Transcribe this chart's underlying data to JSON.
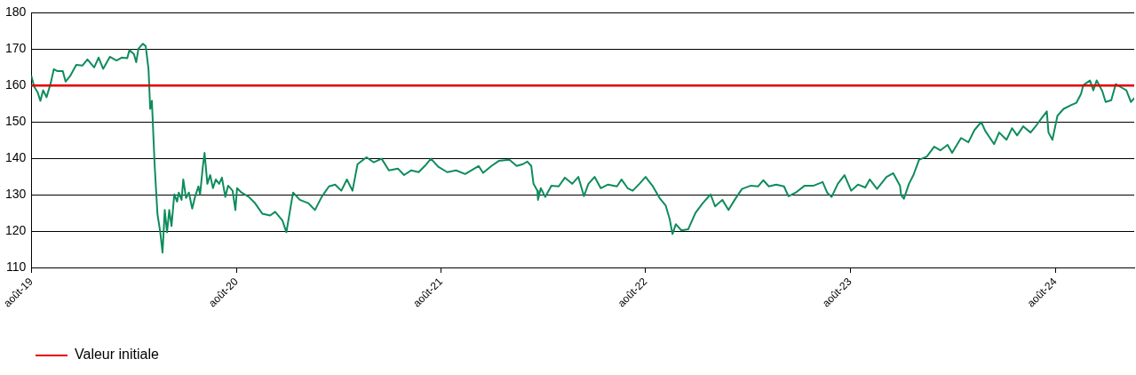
{
  "chart_data": {
    "type": "line",
    "x": [
      "2019-08-01",
      "2019-08-06",
      "2019-08-12",
      "2019-08-17",
      "2019-08-22",
      "2019-08-28",
      "2019-09-04",
      "2019-09-10",
      "2019-09-16",
      "2019-09-26",
      "2019-10-01",
      "2019-10-09",
      "2019-10-20",
      "2019-10-31",
      "2019-11-09",
      "2019-11-21",
      "2019-11-29",
      "2019-12-07",
      "2019-12-19",
      "2019-12-31",
      "2020-01-09",
      "2020-01-19",
      "2020-01-23",
      "2020-01-31",
      "2020-02-04",
      "2020-02-08",
      "2020-02-16",
      "2020-02-21",
      "2020-02-26",
      "2020-02-29",
      "2020-03-03",
      "2020-03-08",
      "2020-03-13",
      "2020-03-18",
      "2020-03-22",
      "2020-03-26",
      "2020-03-30",
      "2020-04-03",
      "2020-04-07",
      "2020-04-12",
      "2020-04-17",
      "2020-04-20",
      "2020-04-25",
      "2020-04-28",
      "2020-05-03",
      "2020-05-08",
      "2020-05-14",
      "2020-05-19",
      "2020-05-25",
      "2020-05-28",
      "2020-06-02",
      "2020-06-05",
      "2020-06-10",
      "2020-06-15",
      "2020-06-20",
      "2020-06-25",
      "2020-07-01",
      "2020-07-06",
      "2020-07-12",
      "2020-07-17",
      "2020-07-25",
      "2020-07-30",
      "2020-08-02",
      "2020-08-10",
      "2020-08-23",
      "2020-09-03",
      "2020-09-16",
      "2020-09-30",
      "2020-10-09",
      "2020-10-22",
      "2020-10-29",
      "2020-11-06",
      "2020-11-10",
      "2020-11-22",
      "2020-12-07",
      "2020-12-19",
      "2020-12-31",
      "2021-01-13",
      "2021-01-24",
      "2021-02-04",
      "2021-02-14",
      "2021-02-24",
      "2021-03-05",
      "2021-03-21",
      "2021-04-03",
      "2021-04-17",
      "2021-04-30",
      "2021-05-16",
      "2021-05-27",
      "2021-06-09",
      "2021-06-22",
      "2021-07-03",
      "2021-07-14",
      "2021-07-27",
      "2021-08-12",
      "2021-08-28",
      "2021-09-13",
      "2021-10-07",
      "2021-10-15",
      "2021-10-30",
      "2021-11-12",
      "2021-12-01",
      "2021-12-14",
      "2021-12-25",
      "2022-01-02",
      "2022-01-09",
      "2022-01-13",
      "2022-01-20",
      "2022-01-21",
      "2022-01-26",
      "2022-02-03",
      "2022-02-14",
      "2022-02-27",
      "2022-03-10",
      "2022-03-23",
      "2022-04-03",
      "2022-04-13",
      "2022-04-21",
      "2022-05-02",
      "2022-05-13",
      "2022-05-26",
      "2022-06-11",
      "2022-06-19",
      "2022-06-30",
      "2022-07-09",
      "2022-07-21",
      "2022-08-01",
      "2022-08-14",
      "2022-08-26",
      "2022-09-06",
      "2022-09-13",
      "2022-09-18",
      "2022-09-24",
      "2022-10-04",
      "2022-10-16",
      "2022-10-29",
      "2022-11-11",
      "2022-11-25",
      "2022-12-03",
      "2022-12-16",
      "2022-12-27",
      "2023-01-07",
      "2023-01-20",
      "2023-02-05",
      "2023-02-18",
      "2023-02-27",
      "2023-03-09",
      "2023-03-22",
      "2023-04-05",
      "2023-04-13",
      "2023-04-26",
      "2023-05-12",
      "2023-05-28",
      "2023-06-13",
      "2023-06-21",
      "2023-06-29",
      "2023-07-10",
      "2023-07-22",
      "2023-08-03",
      "2023-08-15",
      "2023-08-28",
      "2023-09-05",
      "2023-09-18",
      "2023-10-05",
      "2023-10-17",
      "2023-10-23",
      "2023-10-29",
      "2023-10-31",
      "2023-11-05",
      "2023-11-14",
      "2023-11-22",
      "2023-12-02",
      "2023-12-16",
      "2023-12-29",
      "2024-01-09",
      "2024-01-22",
      "2024-01-30",
      "2024-02-15",
      "2024-02-28",
      "2024-03-10",
      "2024-03-22",
      "2024-03-29",
      "2024-04-14",
      "2024-04-23",
      "2024-05-06",
      "2024-05-16",
      "2024-05-25",
      "2024-06-05",
      "2024-06-18",
      "2024-06-29",
      "2024-07-07",
      "2024-07-17",
      "2024-07-20",
      "2024-07-27",
      "2024-08-05",
      "2024-08-16",
      "2024-08-29",
      "2024-09-08",
      "2024-09-16",
      "2024-09-20",
      "2024-10-02",
      "2024-10-08",
      "2024-10-14",
      "2024-10-24",
      "2024-10-30",
      "2024-11-09",
      "2024-11-17",
      "2024-11-28",
      "2024-12-06",
      "2024-12-14",
      "2024-12-20"
    ],
    "series": [
      {
        "color": "#0e8c5c",
        "values": [
          162.6,
          159.7,
          158.2,
          155.8,
          158.7,
          156.8,
          160.4,
          164.5,
          164,
          164,
          161.1,
          162.6,
          165.7,
          165.5,
          167.2,
          165,
          167.7,
          164.6,
          167.9,
          166.9,
          167.7,
          167.5,
          169.8,
          168.6,
          166.4,
          170.1,
          171.5,
          170.8,
          164.5,
          153.6,
          155.8,
          137.9,
          124.6,
          119.7,
          114.1,
          125.8,
          119.7,
          125.8,
          121.4,
          130.1,
          128.1,
          130.6,
          128.6,
          134.2,
          129.1,
          130.6,
          126.2,
          129.4,
          132.3,
          130.1,
          137.9,
          141.5,
          133,
          135.4,
          131.8,
          134.2,
          133,
          134.7,
          129.4,
          132.5,
          131.1,
          125.8,
          131.8,
          130.6,
          129.4,
          127.7,
          124.8,
          124.3,
          125.3,
          122.9,
          119.7,
          127,
          130.6,
          128.6,
          127.7,
          125.8,
          129.4,
          132.3,
          132.8,
          131.1,
          134.2,
          131.1,
          138.4,
          140.3,
          138.9,
          139.9,
          136.7,
          137.2,
          135.4,
          136.7,
          136.2,
          137.9,
          139.9,
          137.7,
          136.2,
          136.7,
          135.7,
          137.9,
          136,
          137.9,
          139.3,
          139.6,
          137.9,
          138.4,
          139.1,
          137.9,
          133,
          131.1,
          128.6,
          131.8,
          129.4,
          132.5,
          132.3,
          134.7,
          133,
          134.9,
          129.6,
          133,
          134.9,
          131.8,
          132.8,
          132.3,
          134.2,
          131.8,
          131.1,
          133,
          134.9,
          132.3,
          129.1,
          127,
          123.3,
          119.2,
          121.9,
          120.2,
          120.5,
          125,
          127.7,
          130.1,
          126.8,
          128.6,
          125.8,
          128.6,
          131.6,
          132.5,
          132.3,
          134,
          132.3,
          132.8,
          132.3,
          129.6,
          130.6,
          132.5,
          132.5,
          133.5,
          130.6,
          129.4,
          133,
          135.4,
          131.1,
          132.8,
          132,
          134.2,
          131.6,
          134.9,
          135.9,
          134.2,
          132.5,
          129.9,
          128.9,
          133,
          135.4,
          139.6,
          140.5,
          143.2,
          142.2,
          143.7,
          141.5,
          145.6,
          144.4,
          147.8,
          150,
          147.6,
          143.9,
          147.1,
          145.1,
          148.3,
          146.3,
          148.8,
          147.1,
          149.2,
          150.9,
          152.9,
          147.1,
          145.1,
          151.7,
          153.6,
          154.6,
          155.3,
          157.7,
          160.1,
          161.4,
          158.7,
          161.4,
          158.5,
          155.5,
          156,
          160.4,
          159.4,
          158.7,
          155.5,
          156.5
        ]
      }
    ],
    "xlim": [
      "2019-08-01",
      "2024-12-20"
    ],
    "xticks": [
      {
        "value": "2019-08-01",
        "label": "août-19"
      },
      {
        "value": "2020-08-01",
        "label": "août-20"
      },
      {
        "value": "2021-08-01",
        "label": "août-21"
      },
      {
        "value": "2022-08-01",
        "label": "août-22"
      },
      {
        "value": "2023-08-01",
        "label": "août-23"
      },
      {
        "value": "2024-08-01",
        "label": "août-24"
      }
    ],
    "ylim": [
      110,
      180
    ],
    "yticks": [
      110,
      120,
      130,
      140,
      150,
      160,
      170,
      180
    ],
    "ref_lines": [
      {
        "axis": "y",
        "value": 160,
        "label": "Valeur initiale",
        "color": "#e00000"
      }
    ],
    "grid": "y",
    "legend": "bottom",
    "marker": "none",
    "line_style": "solid"
  }
}
